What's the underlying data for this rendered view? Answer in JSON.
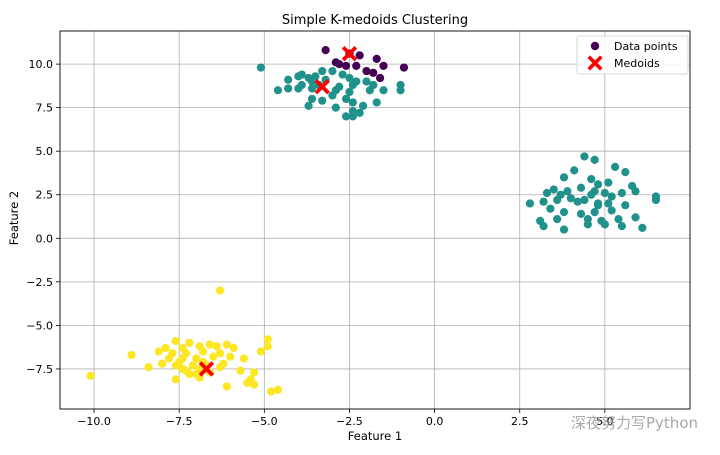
{
  "chart_data": {
    "type": "scatter",
    "title": "Simple K-medoids Clustering",
    "xlabel": "Feature 1",
    "ylabel": "Feature 2",
    "xlim": [
      -11.0,
      7.5
    ],
    "ylim": [
      -9.8,
      11.9
    ],
    "xticks": [
      -10.0,
      -7.5,
      -5.0,
      -2.5,
      0.0,
      2.5,
      5.0
    ],
    "yticks": [
      -7.5,
      -5.0,
      -2.5,
      0.0,
      2.5,
      5.0,
      7.5,
      10.0
    ],
    "xtick_labels": [
      "−10.0",
      "−7.5",
      "−5.0",
      "−2.5",
      "0.0",
      "2.5",
      "5.0"
    ],
    "ytick_labels": [
      "−7.5",
      "−5.0",
      "−2.5",
      "0.0",
      "2.5",
      "5.0",
      "7.5",
      "10.0"
    ],
    "grid": true,
    "legend": {
      "placement": "top-right",
      "entries": [
        {
          "label": "Data points",
          "marker": "circle",
          "color": "#440154"
        },
        {
          "label": "Medoids",
          "marker": "x",
          "color": "#ff0000"
        }
      ]
    },
    "colors": {
      "cluster_0": "#440154",
      "cluster_1": "#21918c",
      "cluster_2": "#fde725",
      "medoid": "#ff0000"
    },
    "series": [
      {
        "name": "Data points",
        "clusters": [
          {
            "color": "#440154",
            "points": [
              [
                -3.2,
                10.8
              ],
              [
                -2.5,
                10.6
              ],
              [
                -2.2,
                10.5
              ],
              [
                -1.7,
                10.3
              ],
              [
                -2.9,
                10.1
              ],
              [
                -2.6,
                9.9
              ],
              [
                -2.3,
                9.9
              ],
              [
                -1.5,
                9.9
              ],
              [
                -0.9,
                9.8
              ],
              [
                -1.8,
                9.5
              ],
              [
                -1.6,
                9.2
              ],
              [
                -2.0,
                9.6
              ],
              [
                -2.8,
                10.0
              ]
            ]
          },
          {
            "color": "#21918c",
            "points": [
              [
                -5.1,
                9.8
              ],
              [
                -3.3,
                9.6
              ],
              [
                -3.0,
                9.6
              ],
              [
                -3.9,
                9.4
              ],
              [
                -4.0,
                9.3
              ],
              [
                -3.7,
                9.2
              ],
              [
                -3.5,
                9.3
              ],
              [
                -4.3,
                9.1
              ],
              [
                -3.6,
                9.0
              ],
              [
                -3.2,
                9.1
              ],
              [
                -2.7,
                9.4
              ],
              [
                -2.5,
                9.2
              ],
              [
                -2.3,
                9.0
              ],
              [
                -2.0,
                9.0
              ],
              [
                -3.9,
                8.8
              ],
              [
                -3.4,
                8.8
              ],
              [
                -2.8,
                8.7
              ],
              [
                -2.4,
                8.8
              ],
              [
                -1.8,
                8.8
              ],
              [
                -1.0,
                8.8
              ],
              [
                -4.3,
                8.6
              ],
              [
                -4.0,
                8.6
              ],
              [
                -3.6,
                8.6
              ],
              [
                -2.9,
                8.5
              ],
              [
                -2.5,
                8.4
              ],
              [
                -1.9,
                8.5
              ],
              [
                -1.5,
                8.5
              ],
              [
                -4.6,
                8.5
              ],
              [
                -1.0,
                8.5
              ],
              [
                -3.0,
                8.2
              ],
              [
                -2.6,
                8.0
              ],
              [
                -3.6,
                8.0
              ],
              [
                -3.3,
                7.9
              ],
              [
                -2.4,
                7.8
              ],
              [
                -2.1,
                7.6
              ],
              [
                -1.7,
                7.8
              ],
              [
                -3.7,
                7.6
              ],
              [
                -2.9,
                7.5
              ],
              [
                -2.4,
                7.3
              ],
              [
                -2.2,
                7.2
              ],
              [
                -2.4,
                7.0
              ],
              [
                -2.6,
                7.0
              ],
              [
                4.4,
                4.7
              ],
              [
                4.7,
                4.5
              ],
              [
                5.3,
                4.1
              ],
              [
                5.6,
                3.8
              ],
              [
                4.1,
                3.9
              ],
              [
                3.8,
                3.5
              ],
              [
                4.6,
                3.4
              ],
              [
                4.8,
                3.1
              ],
              [
                5.1,
                3.2
              ],
              [
                5.8,
                3.0
              ],
              [
                4.3,
                2.9
              ],
              [
                3.5,
                2.8
              ],
              [
                3.9,
                2.7
              ],
              [
                4.7,
                2.7
              ],
              [
                5.0,
                2.6
              ],
              [
                5.5,
                2.6
              ],
              [
                5.9,
                2.7
              ],
              [
                3.3,
                2.6
              ],
              [
                3.7,
                2.5
              ],
              [
                4.6,
                2.5
              ],
              [
                5.2,
                2.4
              ],
              [
                4.0,
                2.3
              ],
              [
                4.4,
                2.2
              ],
              [
                6.5,
                2.4
              ],
              [
                6.5,
                2.2
              ],
              [
                2.8,
                2.0
              ],
              [
                3.2,
                2.1
              ],
              [
                3.6,
                2.2
              ],
              [
                4.2,
                2.1
              ],
              [
                4.8,
                2.0
              ],
              [
                5.1,
                2.0
              ],
              [
                5.6,
                1.9
              ],
              [
                3.4,
                1.7
              ],
              [
                3.8,
                1.5
              ],
              [
                4.3,
                1.4
              ],
              [
                4.7,
                1.5
              ],
              [
                5.2,
                1.6
              ],
              [
                3.1,
                1.0
              ],
              [
                3.6,
                1.1
              ],
              [
                4.5,
                1.1
              ],
              [
                4.9,
                1.0
              ],
              [
                5.4,
                1.1
              ],
              [
                5.9,
                1.2
              ],
              [
                3.2,
                0.7
              ],
              [
                3.8,
                0.5
              ],
              [
                4.5,
                0.8
              ],
              [
                5.0,
                0.8
              ],
              [
                5.5,
                0.7
              ],
              [
                6.1,
                0.6
              ],
              [
                4.8,
                1.9
              ]
            ]
          },
          {
            "color": "#fde725",
            "points": [
              [
                -6.3,
                -3.0
              ],
              [
                -4.9,
                -5.8
              ],
              [
                -7.6,
                -5.9
              ],
              [
                -7.2,
                -6.0
              ],
              [
                -6.6,
                -6.1
              ],
              [
                -6.1,
                -6.1
              ],
              [
                -7.9,
                -6.3
              ],
              [
                -7.4,
                -6.3
              ],
              [
                -6.9,
                -6.2
              ],
              [
                -6.4,
                -6.2
              ],
              [
                -5.9,
                -6.3
              ],
              [
                -5.1,
                -6.5
              ],
              [
                -4.9,
                -6.2
              ],
              [
                -8.1,
                -6.5
              ],
              [
                -7.7,
                -6.6
              ],
              [
                -7.3,
                -6.6
              ],
              [
                -6.8,
                -6.5
              ],
              [
                -6.3,
                -6.6
              ],
              [
                -8.9,
                -6.7
              ],
              [
                -7.8,
                -6.9
              ],
              [
                -7.4,
                -6.9
              ],
              [
                -7.0,
                -6.9
              ],
              [
                -6.5,
                -6.8
              ],
              [
                -6.0,
                -6.8
              ],
              [
                -5.6,
                -6.9
              ],
              [
                -7.5,
                -7.1
              ],
              [
                -6.8,
                -7.1
              ],
              [
                -6.2,
                -7.2
              ],
              [
                -8.0,
                -7.2
              ],
              [
                -7.6,
                -7.3
              ],
              [
                -7.1,
                -7.3
              ],
              [
                -6.7,
                -7.3
              ],
              [
                -6.3,
                -7.4
              ],
              [
                -8.4,
                -7.4
              ],
              [
                -6.9,
                -7.5
              ],
              [
                -7.3,
                -7.6
              ],
              [
                -7.0,
                -7.8
              ],
              [
                -6.6,
                -7.7
              ],
              [
                -5.7,
                -7.6
              ],
              [
                -5.3,
                -7.7
              ],
              [
                -7.2,
                -7.8
              ],
              [
                -7.6,
                -8.1
              ],
              [
                -6.9,
                -8.0
              ],
              [
                -5.4,
                -8.1
              ],
              [
                -5.5,
                -8.3
              ],
              [
                -5.3,
                -8.4
              ],
              [
                -6.1,
                -8.5
              ],
              [
                -10.1,
                -7.9
              ],
              [
                -4.6,
                -8.7
              ],
              [
                -4.8,
                -8.8
              ],
              [
                -7.4,
                -7.5
              ]
            ]
          }
        ]
      },
      {
        "name": "Medoids",
        "points": [
          [
            -2.5,
            10.6
          ],
          [
            -3.3,
            8.7
          ],
          [
            -6.7,
            -7.5
          ]
        ]
      }
    ]
  },
  "watermark": "深夜努力写Python"
}
